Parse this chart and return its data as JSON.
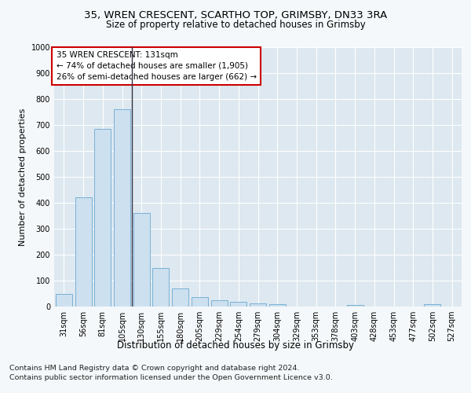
{
  "title1": "35, WREN CRESCENT, SCARTHO TOP, GRIMSBY, DN33 3RA",
  "title2": "Size of property relative to detached houses in Grimsby",
  "xlabel": "Distribution of detached houses by size in Grimsby",
  "ylabel": "Number of detached properties",
  "footnote1": "Contains HM Land Registry data © Crown copyright and database right 2024.",
  "footnote2": "Contains public sector information licensed under the Open Government Licence v3.0.",
  "categories": [
    "31sqm",
    "56sqm",
    "81sqm",
    "105sqm",
    "130sqm",
    "155sqm",
    "180sqm",
    "205sqm",
    "229sqm",
    "254sqm",
    "279sqm",
    "304sqm",
    "329sqm",
    "353sqm",
    "378sqm",
    "403sqm",
    "428sqm",
    "453sqm",
    "477sqm",
    "502sqm",
    "527sqm"
  ],
  "values": [
    50,
    420,
    685,
    760,
    360,
    150,
    70,
    37,
    25,
    17,
    12,
    8,
    0,
    0,
    0,
    5,
    0,
    0,
    0,
    8,
    0
  ],
  "bar_color": "#cce0f0",
  "bar_edge_color": "#7ab0d4",
  "annotation_title": "35 WREN CRESCENT: 131sqm",
  "annotation_line1": "← 74% of detached houses are smaller (1,905)",
  "annotation_line2": "26% of semi-detached houses are larger (662) →",
  "annotation_box_facecolor": "#ffffff",
  "annotation_box_edgecolor": "#cc0000",
  "vline_x": 3.5,
  "vline_color": "#333344",
  "ylim": [
    0,
    1000
  ],
  "yticks": [
    0,
    100,
    200,
    300,
    400,
    500,
    600,
    700,
    800,
    900,
    1000
  ],
  "plot_bg_color": "#dde8f0",
  "fig_bg_color": "#f5f8fa",
  "grid_color": "#ffffff",
  "title1_fontsize": 9.5,
  "title2_fontsize": 8.5,
  "ylabel_fontsize": 8,
  "xlabel_fontsize": 8.5,
  "tick_fontsize": 7,
  "annotation_fontsize": 7.5,
  "footnote_fontsize": 6.8
}
